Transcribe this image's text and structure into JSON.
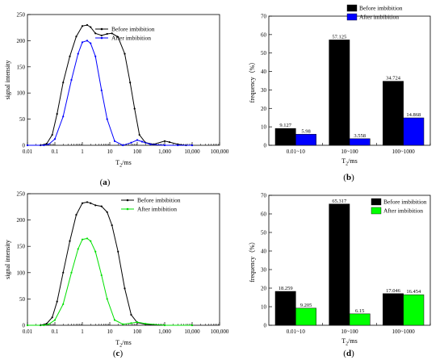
{
  "chart_data": [
    {
      "id": "a",
      "panel_label": "a",
      "type": "line",
      "xscale": "log",
      "xlim": [
        0.01,
        100000
      ],
      "ylim": [
        0,
        250
      ],
      "xticks": [
        0.01,
        0.1,
        1,
        10,
        100,
        1000,
        10000,
        100000
      ],
      "xtick_labels": [
        "0.01",
        "0.1",
        "1",
        "10",
        "100",
        "1,000",
        "10,000",
        "100,000"
      ],
      "yticks": [
        0,
        50,
        100,
        150,
        200,
        250
      ],
      "ytick_labels": [
        "0",
        "50",
        "100",
        "150",
        "200",
        "250"
      ],
      "xlabel": "T",
      "xlabel_sub": "2",
      "xlabel_unit": "/ms",
      "ylabel": "signal intensity",
      "legend": "top-right",
      "series": [
        {
          "name": "Before imbibition",
          "color": "#000000",
          "x": [
            0.01,
            0.03,
            0.05,
            0.08,
            0.12,
            0.2,
            0.35,
            0.6,
            1,
            1.5,
            2,
            3,
            5,
            8,
            12,
            20,
            35,
            55,
            80,
            120,
            200,
            400,
            1000,
            1500,
            3000,
            6000,
            10000
          ],
          "y": [
            0,
            0,
            3,
            20,
            60,
            120,
            170,
            208,
            228,
            230,
            226,
            214,
            210,
            213,
            214,
            207,
            175,
            120,
            70,
            20,
            5,
            2,
            8,
            6,
            2,
            0,
            0
          ]
        },
        {
          "name": "After imbibition",
          "color": "#0000ff",
          "x": [
            0.01,
            0.04,
            0.06,
            0.1,
            0.2,
            0.4,
            0.7,
            1,
            1.5,
            2,
            3,
            5,
            8,
            15,
            30,
            60,
            100,
            150,
            300,
            1000,
            3000,
            10000
          ],
          "y": [
            0,
            0,
            2,
            12,
            55,
            125,
            175,
            197,
            200,
            195,
            170,
            105,
            50,
            8,
            0,
            5,
            10,
            7,
            2,
            0,
            0,
            0
          ]
        }
      ]
    },
    {
      "id": "b",
      "panel_label": "b",
      "type": "bar",
      "categories": [
        "0.01~10",
        "10~100",
        "100~1000"
      ],
      "ylim": [
        0,
        70
      ],
      "yticks": [
        0,
        10,
        20,
        30,
        40,
        50,
        60,
        70
      ],
      "ytick_labels": [
        "0",
        "10",
        "20",
        "30",
        "40",
        "50",
        "60",
        "70"
      ],
      "xlabel": "T",
      "xlabel_sub": "2",
      "xlabel_unit": "/ms",
      "ylabel": "frequency（%）",
      "legend": "top-right",
      "series": [
        {
          "name": "Before imbibition",
          "color": "#000000",
          "values": [
            9.127,
            57.125,
            34.724
          ],
          "labels": [
            "9.127",
            "57.125",
            "34.724"
          ]
        },
        {
          "name": "After imbibition",
          "color": "#0000ff",
          "values": [
            5.98,
            3.558,
            14.868
          ],
          "labels": [
            "5.98",
            "3.558",
            "14.868"
          ]
        }
      ]
    },
    {
      "id": "c",
      "panel_label": "c",
      "type": "line",
      "xscale": "log",
      "xlim": [
        0.01,
        100000
      ],
      "ylim": [
        0,
        250
      ],
      "xticks": [
        0.01,
        0.1,
        1,
        10,
        100,
        1000,
        10000,
        100000
      ],
      "xtick_labels": [
        "0.01",
        "0.1",
        "1",
        "10",
        "100",
        "1,000",
        "10,000",
        "100,000"
      ],
      "yticks": [
        0,
        50,
        100,
        150,
        200,
        250
      ],
      "ytick_labels": [
        "0",
        "50",
        "100",
        "150",
        "200",
        "250"
      ],
      "xlabel": "T",
      "xlabel_sub": "2",
      "xlabel_unit": "/ms",
      "ylabel": "signal intensity",
      "legend": "top-right",
      "series": [
        {
          "name": "Before imbibition",
          "color": "#000000",
          "x": [
            0.01,
            0.03,
            0.05,
            0.08,
            0.12,
            0.2,
            0.35,
            0.6,
            1,
            1.5,
            2,
            3,
            5,
            8,
            12,
            20,
            35,
            60,
            100,
            200,
            1000,
            10000
          ],
          "y": [
            0,
            0,
            3,
            15,
            45,
            100,
            160,
            210,
            232,
            234,
            232,
            228,
            226,
            215,
            190,
            140,
            70,
            20,
            5,
            2,
            0,
            0
          ]
        },
        {
          "name": "After imbibition",
          "color": "#00e000",
          "x": [
            0.01,
            0.04,
            0.06,
            0.1,
            0.2,
            0.4,
            0.7,
            1,
            1.5,
            2,
            3,
            5,
            8,
            15,
            30,
            60,
            100,
            200,
            1000,
            10000
          ],
          "y": [
            0,
            0,
            2,
            10,
            40,
            100,
            145,
            163,
            165,
            160,
            140,
            95,
            50,
            10,
            2,
            4,
            6,
            3,
            0,
            0
          ]
        }
      ]
    },
    {
      "id": "d",
      "panel_label": "d",
      "type": "bar",
      "categories": [
        "0.01~10",
        "10~100",
        "100~1000"
      ],
      "ylim": [
        0,
        70
      ],
      "yticks": [
        0,
        10,
        20,
        30,
        40,
        50,
        60,
        70
      ],
      "ytick_labels": [
        "0",
        "10",
        "20",
        "30",
        "40",
        "50",
        "60",
        "70"
      ],
      "xlabel": "T",
      "xlabel_sub": "2",
      "xlabel_unit": "/ms",
      "ylabel": "frequency（%）",
      "legend": "top-right",
      "series": [
        {
          "name": "Before imbibition",
          "color": "#000000",
          "values": [
            18.259,
            65.317,
            17.046
          ],
          "labels": [
            "18.259",
            "65.317",
            "17.046"
          ]
        },
        {
          "name": "After imbibition",
          "color": "#00ff00",
          "values": [
            9.205,
            6.15,
            16.454
          ],
          "labels": [
            "9.205",
            "6.15",
            "16.454"
          ]
        }
      ]
    }
  ]
}
